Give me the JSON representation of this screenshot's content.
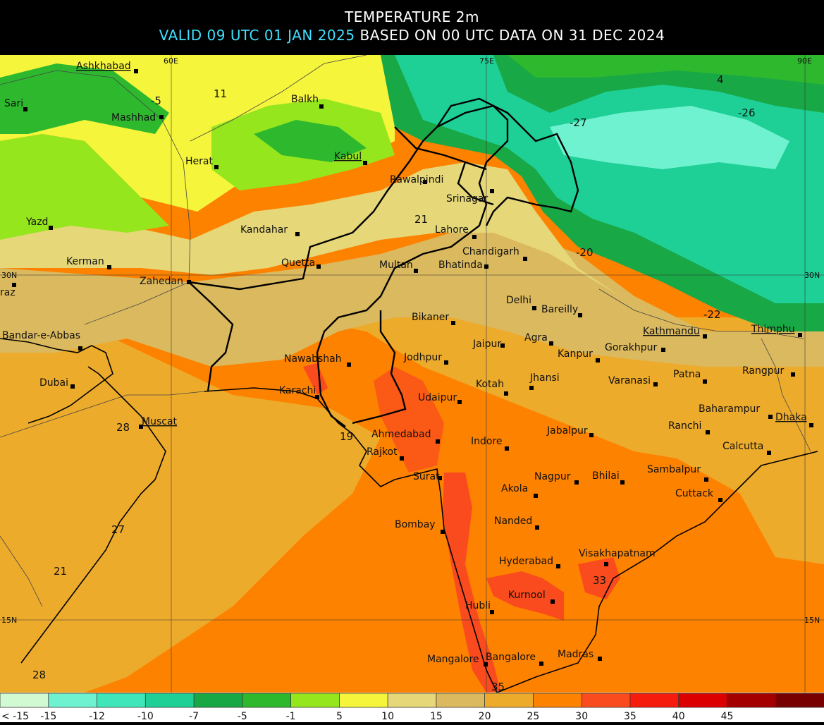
{
  "header": {
    "title": "TEMPERATURE 2m",
    "valid_text": "VALID 09 UTC 01 JAN 2025",
    "based_text": "BASED ON 00 UTC DATA ON 31 DEC 2024",
    "valid_color": "#3fe0ff"
  },
  "map": {
    "coordinate_labels": {
      "lon_60": "60E",
      "lon_75": "75E",
      "lon_90": "90E",
      "lat_30_left": "30N",
      "lat_30_right": "30N",
      "lat_15_left": "15N",
      "lat_15_right": "15N"
    },
    "cities": [
      {
        "name": "Ashkhabad",
        "capital": true
      },
      {
        "name": "Sari",
        "capital": false
      },
      {
        "name": "Mashhad",
        "capital": false
      },
      {
        "name": "Balkh",
        "capital": false
      },
      {
        "name": "Herat",
        "capital": false
      },
      {
        "name": "Kabul",
        "capital": true
      },
      {
        "name": "Rawalpindi",
        "capital": false
      },
      {
        "name": "Srinagar",
        "capital": false
      },
      {
        "name": "Yazd",
        "capital": false
      },
      {
        "name": "Kandahar",
        "capital": false
      },
      {
        "name": "Lahore",
        "capital": false
      },
      {
        "name": "Kerman",
        "capital": false
      },
      {
        "name": "Quetta",
        "capital": false
      },
      {
        "name": "Chandigarh",
        "capital": false
      },
      {
        "name": "Zahedan",
        "capital": false
      },
      {
        "name": "Multan",
        "capital": false
      },
      {
        "name": "Bhatinda",
        "capital": false
      },
      {
        "name": "raz",
        "capital": false
      },
      {
        "name": "Delhi",
        "capital": false
      },
      {
        "name": "Bareilly",
        "capital": false
      },
      {
        "name": "Bikaner",
        "capital": false
      },
      {
        "name": "Kathmandu",
        "capital": true
      },
      {
        "name": "Thimphu",
        "capital": true
      },
      {
        "name": "Bandar-e-Abbas",
        "capital": false
      },
      {
        "name": "Agra",
        "capital": false
      },
      {
        "name": "Jaipur",
        "capital": false
      },
      {
        "name": "Kanpur",
        "capital": false
      },
      {
        "name": "Gorakhpur",
        "capital": false
      },
      {
        "name": "Nawabshah",
        "capital": false
      },
      {
        "name": "Jodhpur",
        "capital": false
      },
      {
        "name": "Rangpur",
        "capital": false
      },
      {
        "name": "Dubai",
        "capital": false
      },
      {
        "name": "Karachi",
        "capital": false
      },
      {
        "name": "Jhansi",
        "capital": false
      },
      {
        "name": "Kotah",
        "capital": false
      },
      {
        "name": "Varanasi",
        "capital": false
      },
      {
        "name": "Patna",
        "capital": false
      },
      {
        "name": "Udaipur",
        "capital": false
      },
      {
        "name": "Baharampur",
        "capital": false
      },
      {
        "name": "Muscat",
        "capital": true
      },
      {
        "name": "Ahmedabad",
        "capital": false
      },
      {
        "name": "Jabalpur",
        "capital": false
      },
      {
        "name": "Ranchi",
        "capital": false
      },
      {
        "name": "Dhaka",
        "capital": true
      },
      {
        "name": "Indore",
        "capital": false
      },
      {
        "name": "Rajkot",
        "capital": false
      },
      {
        "name": "Calcutta",
        "capital": false
      },
      {
        "name": "Sambalpur",
        "capital": false
      },
      {
        "name": "Nagpur",
        "capital": false
      },
      {
        "name": "Bhilai",
        "capital": false
      },
      {
        "name": "Surat",
        "capital": false
      },
      {
        "name": "Akola",
        "capital": false
      },
      {
        "name": "Cuttack",
        "capital": false
      },
      {
        "name": "Bombay",
        "capital": false
      },
      {
        "name": "Nanded",
        "capital": false
      },
      {
        "name": "Visakhapatnam",
        "capital": false
      },
      {
        "name": "Hyderabad",
        "capital": false
      },
      {
        "name": "Kurnool",
        "capital": false
      },
      {
        "name": "Hubli",
        "capital": false
      },
      {
        "name": "Mangalore",
        "capital": false
      },
      {
        "name": "Bangalore",
        "capital": false
      },
      {
        "name": "Madras",
        "capital": false
      }
    ],
    "value_labels": [
      "11",
      "-5",
      "4",
      "-26",
      "-27",
      "21",
      "-20",
      "-22",
      "28",
      "19",
      "27",
      "21",
      "33",
      "28",
      "35"
    ]
  },
  "legend": {
    "colors": [
      "#d2fad2",
      "#6ef2cf",
      "#3ee6b9",
      "#1ecf96",
      "#19a846",
      "#2eb82e",
      "#96e61e",
      "#f5f53c",
      "#e6d778",
      "#dbb95e",
      "#edab2c",
      "#fd8200",
      "#fa4b1e",
      "#f51c0e",
      "#dc0000",
      "#a50000",
      "#780000"
    ],
    "labels": [
      "< -15",
      "-15",
      "-12",
      "-10",
      "-7",
      "-5",
      "-1",
      "5",
      "10",
      "15",
      "20",
      "25",
      "30",
      "35",
      "40",
      "45"
    ]
  }
}
